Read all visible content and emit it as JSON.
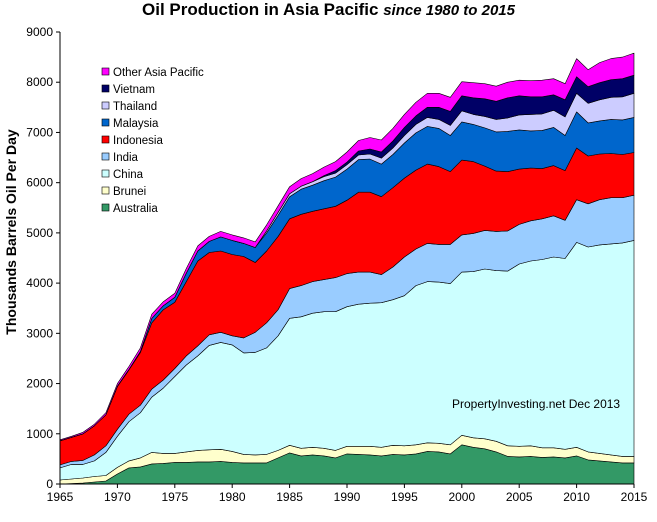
{
  "chart_data": {
    "type": "area",
    "stacked": true,
    "title": "Oil Production in Asia Pacific",
    "subtitle": "since 1980 to 2015",
    "ylabel": "Thousands Barrels Oil Per Day",
    "xlabel": "",
    "xlim": [
      1965,
      2015
    ],
    "ylim": [
      0,
      9000
    ],
    "x_ticks": [
      1965,
      1970,
      1975,
      1980,
      1985,
      1990,
      1995,
      2000,
      2005,
      2010,
      2015
    ],
    "y_ticks": [
      0,
      1000,
      2000,
      3000,
      4000,
      5000,
      6000,
      7000,
      8000,
      9000
    ],
    "annotation": "PropertyInvesting.net  Dec 2013",
    "legend_position": "top-left",
    "x": [
      1965,
      1966,
      1967,
      1968,
      1969,
      1970,
      1971,
      1972,
      1973,
      1974,
      1975,
      1976,
      1977,
      1978,
      1979,
      1980,
      1981,
      1982,
      1983,
      1984,
      1985,
      1986,
      1987,
      1988,
      1989,
      1990,
      1991,
      1992,
      1993,
      1994,
      1995,
      1996,
      1997,
      1998,
      1999,
      2000,
      2001,
      2002,
      2003,
      2004,
      2005,
      2006,
      2007,
      2008,
      2009,
      2010,
      2011,
      2012,
      2013,
      2014,
      2015
    ],
    "series": [
      {
        "name": "Australia",
        "color": "#339966",
        "values": [
          0,
          10,
          20,
          40,
          60,
          200,
          320,
          340,
          400,
          410,
          430,
          430,
          440,
          440,
          450,
          430,
          420,
          420,
          420,
          520,
          620,
          560,
          580,
          560,
          520,
          600,
          590,
          580,
          560,
          590,
          580,
          600,
          650,
          640,
          600,
          780,
          730,
          700,
          640,
          550,
          540,
          550,
          530,
          540,
          520,
          560,
          480,
          460,
          440,
          420,
          420
        ]
      },
      {
        "name": "Brunei",
        "color": "#FFFFCC",
        "values": [
          80,
          90,
          100,
          110,
          110,
          130,
          140,
          180,
          230,
          200,
          180,
          210,
          230,
          240,
          240,
          220,
          170,
          160,
          170,
          150,
          150,
          150,
          150,
          150,
          150,
          150,
          160,
          170,
          170,
          180,
          180,
          180,
          170,
          170,
          180,
          190,
          190,
          200,
          210,
          210,
          210,
          210,
          190,
          180,
          170,
          170,
          160,
          150,
          140,
          130,
          130
        ]
      },
      {
        "name": "China",
        "color": "#CCFFFF",
        "values": [
          240,
          290,
          270,
          310,
          460,
          620,
          780,
          900,
          1100,
          1300,
          1530,
          1730,
          1880,
          2080,
          2130,
          2120,
          2020,
          2040,
          2120,
          2280,
          2530,
          2620,
          2670,
          2720,
          2760,
          2780,
          2830,
          2850,
          2880,
          2900,
          2990,
          3170,
          3210,
          3210,
          3210,
          3250,
          3310,
          3380,
          3400,
          3480,
          3630,
          3680,
          3750,
          3800,
          3800,
          4080,
          4080,
          4150,
          4200,
          4250,
          4300
        ]
      },
      {
        "name": "India",
        "color": "#99CCFF",
        "values": [
          60,
          60,
          80,
          120,
          130,
          140,
          150,
          150,
          160,
          160,
          160,
          180,
          200,
          210,
          200,
          180,
          300,
          400,
          500,
          520,
          590,
          620,
          630,
          640,
          680,
          660,
          640,
          620,
          560,
          650,
          770,
          730,
          760,
          750,
          780,
          740,
          760,
          770,
          780,
          800,
          790,
          800,
          810,
          820,
          760,
          850,
          860,
          900,
          920,
          900,
          900
        ]
      },
      {
        "name": "Indonesia",
        "color": "#FF0000",
        "values": [
          480,
          480,
          530,
          580,
          620,
          850,
          880,
          1050,
          1320,
          1400,
          1320,
          1480,
          1690,
          1640,
          1620,
          1620,
          1620,
          1390,
          1430,
          1460,
          1390,
          1420,
          1400,
          1410,
          1420,
          1460,
          1590,
          1590,
          1550,
          1580,
          1570,
          1570,
          1580,
          1550,
          1450,
          1490,
          1430,
          1280,
          1200,
          1180,
          1100,
          1050,
          1000,
          1000,
          990,
          1030,
          950,
          910,
          880,
          860,
          850
        ]
      },
      {
        "name": "Malaysia",
        "color": "#0066CC",
        "values": [
          0,
          0,
          0,
          0,
          0,
          10,
          10,
          20,
          90,
          80,
          100,
          170,
          200,
          220,
          280,
          280,
          260,
          300,
          360,
          420,
          440,
          500,
          520,
          560,
          580,
          620,
          650,
          660,
          650,
          660,
          700,
          740,
          750,
          760,
          720,
          760,
          740,
          760,
          780,
          800,
          780,
          740,
          760,
          760,
          700,
          720,
          660,
          660,
          680,
          690,
          700
        ]
      },
      {
        "name": "Thailand",
        "color": "#CCCCFF",
        "values": [
          0,
          0,
          0,
          0,
          0,
          0,
          0,
          0,
          0,
          0,
          0,
          0,
          0,
          0,
          0,
          0,
          0,
          0,
          40,
          60,
          60,
          60,
          70,
          80,
          80,
          90,
          90,
          100,
          120,
          130,
          150,
          170,
          180,
          180,
          200,
          220,
          200,
          230,
          250,
          270,
          300,
          330,
          330,
          340,
          370,
          370,
          390,
          420,
          440,
          460,
          480
        ]
      },
      {
        "name": "Vietnam",
        "color": "#000066",
        "values": [
          0,
          0,
          0,
          0,
          0,
          0,
          0,
          0,
          0,
          0,
          0,
          0,
          0,
          0,
          0,
          0,
          0,
          0,
          0,
          0,
          0,
          0,
          0,
          20,
          50,
          50,
          80,
          100,
          120,
          140,
          160,
          170,
          200,
          240,
          280,
          300,
          330,
          350,
          360,
          400,
          380,
          350,
          340,
          310,
          340,
          330,
          330,
          340,
          350,
          360,
          360
        ]
      },
      {
        "name": "Other Asia Pacific",
        "color": "#FF00FF",
        "values": [
          20,
          20,
          30,
          30,
          40,
          50,
          60,
          70,
          80,
          80,
          80,
          90,
          100,
          100,
          110,
          110,
          110,
          110,
          120,
          130,
          140,
          150,
          160,
          170,
          180,
          200,
          210,
          230,
          240,
          250,
          260,
          270,
          280,
          280,
          280,
          280,
          300,
          300,
          300,
          310,
          310,
          320,
          330,
          320,
          320,
          360,
          340,
          400,
          420,
          430,
          440
        ]
      }
    ]
  }
}
